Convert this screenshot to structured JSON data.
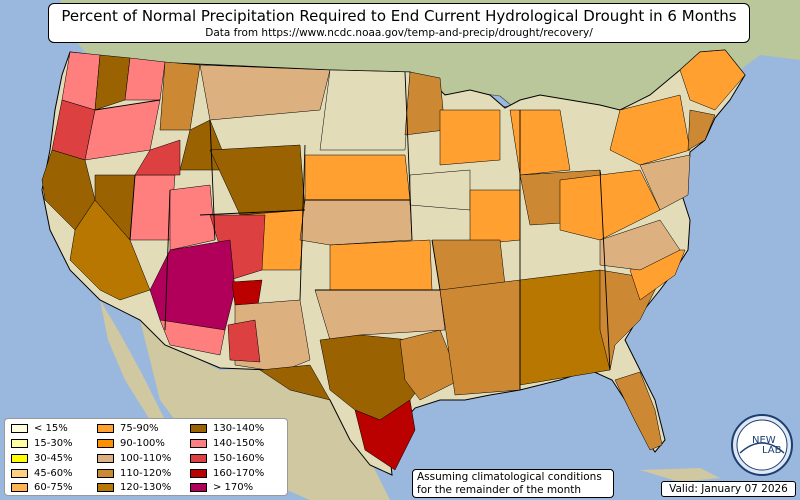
{
  "title": {
    "main": "Percent of Normal Precipitation Required to End Current Hydrological Drought in 6 Months",
    "source": "Data from https://www.ncdc.noaa.gov/temp-and-precip/drought/recovery/"
  },
  "legend": [
    {
      "label": "< 15%",
      "color": "#ffffe0"
    },
    {
      "label": "15-30%",
      "color": "#ffffa0"
    },
    {
      "label": "30-45%",
      "color": "#ffff00"
    },
    {
      "label": "45-60%",
      "color": "#ffd080"
    },
    {
      "label": "60-75%",
      "color": "#ffb450"
    },
    {
      "label": "75-90%",
      "color": "#ffa030"
    },
    {
      "label": "90-100%",
      "color": "#ff9000"
    },
    {
      "label": "100-110%",
      "color": "#ddb080"
    },
    {
      "label": "110-120%",
      "color": "#cc8833"
    },
    {
      "label": "120-130%",
      "color": "#b87700"
    },
    {
      "label": "130-140%",
      "color": "#9a6200"
    },
    {
      "label": "140-150%",
      "color": "#ff7f7f"
    },
    {
      "label": "150-160%",
      "color": "#dd4040"
    },
    {
      "label": "160-170%",
      "color": "#bb0000"
    },
    {
      "label": "> 170%",
      "color": "#b0005a"
    }
  ],
  "assumption": {
    "line1": "Assuming climatological conditions",
    "line2": "for the remainder of the month"
  },
  "valid": "Valid: January 07 2026",
  "logo": {
    "text1": "NEW",
    "text2": "LAB"
  },
  "colors": {
    "ocean": "#9ab7de",
    "land": "#e3dcb8",
    "border": "#000000"
  }
}
